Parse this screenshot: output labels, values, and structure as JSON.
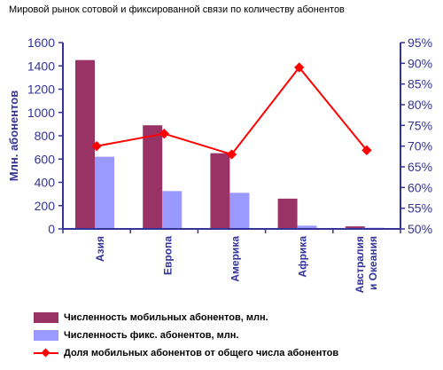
{
  "chart_data": {
    "type": "bar",
    "title": "Мировой рынок сотовой и фиксированной связи по количеству абонентов",
    "ylabel": "Млн. абонентов",
    "categories": [
      "Азия",
      "Европа",
      "Америка",
      "Африка",
      "Австралия и Океания"
    ],
    "category_lines": [
      [
        "Азия"
      ],
      [
        "Европа"
      ],
      [
        "Америка"
      ],
      [
        "Африка"
      ],
      [
        "Австралия",
        "и Океания"
      ]
    ],
    "ylim": [
      0,
      1600
    ],
    "yticks": [
      "0",
      "200",
      "400",
      "600",
      "800",
      "1000",
      "1200",
      "1400",
      "1600"
    ],
    "y2lim": [
      50,
      95
    ],
    "y2ticks": [
      "50%",
      "55%",
      "60%",
      "65%",
      "70%",
      "75%",
      "80%",
      "85%",
      "90%",
      "95%"
    ],
    "series": [
      {
        "name": "Численность мобильных абонентов, млн.",
        "type": "bar",
        "axis": "left",
        "color": "#993366",
        "values": [
          1450,
          890,
          650,
          260,
          22
        ]
      },
      {
        "name": "Численность фикс. абонентов, млн.",
        "type": "bar",
        "axis": "left",
        "color": "#9999ff",
        "values": [
          620,
          325,
          310,
          28,
          10
        ]
      },
      {
        "name": "Доля мобильных абонентов от общего числа абонентов",
        "type": "line",
        "axis": "right",
        "color": "#ff0000",
        "values": [
          70,
          73,
          68,
          89,
          69
        ]
      }
    ],
    "grid": false,
    "legend": "bottom",
    "axis_color": "#333399"
  }
}
